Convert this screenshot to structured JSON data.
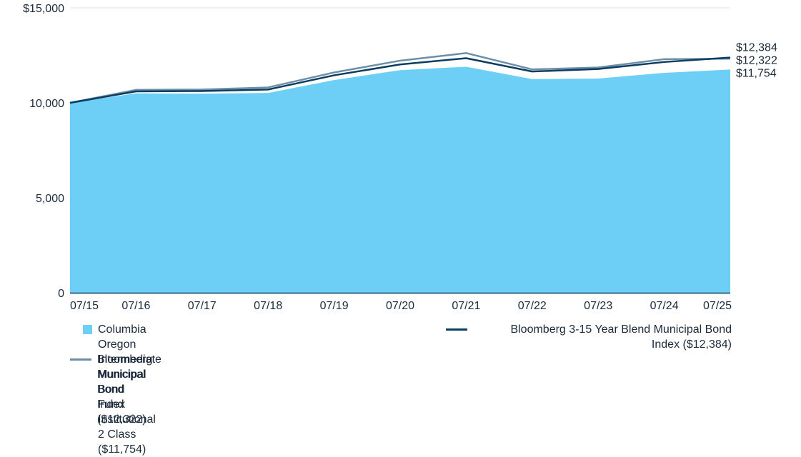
{
  "chart_data": {
    "type": "area",
    "x": [
      "07/15",
      "07/16",
      "07/17",
      "07/18",
      "07/19",
      "07/20",
      "07/21",
      "07/22",
      "07/23",
      "07/24",
      "07/25"
    ],
    "ylim": [
      0,
      15000
    ],
    "yticks": [
      0,
      5000,
      10000,
      15000
    ],
    "ytick_labels": [
      "0",
      "5,000",
      "10,000",
      "$15,000"
    ],
    "grid": "horizontal",
    "legend_placement": "bottom",
    "series": [
      {
        "name": "Columbia Oregon Intermediate Municipal Bond Fund Institutional 2 Class ($11,754)",
        "style": "area",
        "color": "#6dcff6",
        "end_label": "$11,754",
        "values": [
          10000,
          10500,
          10480,
          10520,
          11200,
          11720,
          11900,
          11250,
          11280,
          11580,
          11754
        ]
      },
      {
        "name": "Bloomberg 3-15 Year Blend Municipal Bond Index ($12,384)",
        "style": "line",
        "color": "#0c3c60",
        "end_label": "$12,384",
        "values": [
          10000,
          10600,
          10620,
          10700,
          11450,
          12020,
          12350,
          11650,
          11780,
          12150,
          12384
        ]
      },
      {
        "name": "Bloomberg Municipal Bond Index ($12,322)",
        "style": "line",
        "color": "#6b8fa8",
        "end_label": "$12,322",
        "values": [
          10000,
          10680,
          10700,
          10810,
          11600,
          12220,
          12620,
          11760,
          11860,
          12300,
          12322
        ]
      }
    ]
  },
  "legend": {
    "item1": "Columbia Oregon Intermediate Municipal Bond\nFund Institutional 2 Class ($11,754)",
    "item2": "Bloomberg 3-15 Year Blend Municipal Bond\nIndex ($12,384)",
    "item3": "Bloomberg Municipal Bond Index ($12,322)"
  }
}
